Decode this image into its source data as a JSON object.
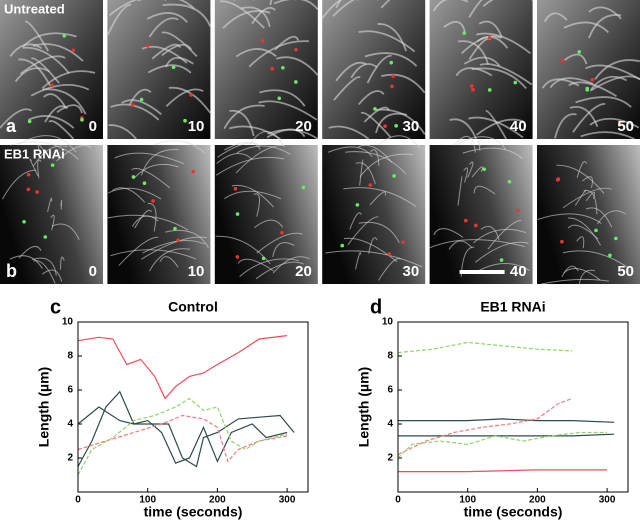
{
  "figure": {
    "rows": [
      {
        "label": "Untreated",
        "letter": "a",
        "times": [
          0,
          10,
          20,
          30,
          40,
          50
        ]
      },
      {
        "label": "EB1 RNAi",
        "letter": "b",
        "times": [
          0,
          10,
          20,
          30,
          40,
          50
        ]
      }
    ]
  },
  "chart_data": [
    {
      "type": "line",
      "panel": "c",
      "title": "Control",
      "xlabel": "time (seconds)",
      "ylabel": "Length (µm)",
      "xlim": [
        0,
        330
      ],
      "ylim": [
        0,
        10
      ],
      "xticks": [
        0,
        100,
        200,
        300
      ],
      "yticks": [
        2,
        4,
        6,
        8,
        10
      ],
      "series": [
        {
          "color": "#e8505a",
          "linestyle": "solid",
          "x": [
            0,
            30,
            50,
            70,
            90,
            110,
            125,
            140,
            160,
            180,
            200,
            230,
            260,
            300
          ],
          "values": [
            8.9,
            9.1,
            9.0,
            7.5,
            7.8,
            6.8,
            5.5,
            6.2,
            6.8,
            7.0,
            7.5,
            8.2,
            9.0,
            9.2
          ]
        },
        {
          "color": "#2f4a4a",
          "linestyle": "solid",
          "x": [
            0,
            20,
            40,
            60,
            80,
            100,
            120,
            140,
            160,
            180,
            200,
            220,
            250,
            270,
            300
          ],
          "values": [
            1.5,
            3.0,
            5.0,
            5.9,
            4.0,
            4.2,
            3.5,
            1.7,
            2.0,
            3.8,
            1.8,
            3.5,
            4.0,
            3.2,
            3.5
          ]
        },
        {
          "color": "#2f4a4a",
          "linestyle": "solid",
          "x": [
            0,
            30,
            60,
            80,
            100,
            130,
            150,
            170,
            180,
            200,
            230,
            260,
            290,
            310
          ],
          "values": [
            4.0,
            5.0,
            4.2,
            4.0,
            4.0,
            4.0,
            2.0,
            1.5,
            3.2,
            3.5,
            4.3,
            4.4,
            4.5,
            3.5
          ]
        },
        {
          "color": "#f07a80",
          "linestyle": "dashed",
          "x": [
            0,
            40,
            80,
            120,
            150,
            180,
            200,
            215,
            230,
            260,
            300
          ],
          "values": [
            2.5,
            3.0,
            3.5,
            4.0,
            4.5,
            4.3,
            3.8,
            1.8,
            2.5,
            3.0,
            3.3
          ]
        },
        {
          "color": "#8fd46a",
          "linestyle": "dashed",
          "x": [
            0,
            20,
            50,
            80,
            110,
            140,
            160,
            180,
            200,
            220,
            240,
            260,
            300
          ],
          "values": [
            1.0,
            2.5,
            3.2,
            4.2,
            4.5,
            5.0,
            5.5,
            4.8,
            5.0,
            3.0,
            2.5,
            3.0,
            3.4
          ]
        }
      ]
    },
    {
      "type": "line",
      "panel": "d",
      "title": "EB1 RNAi",
      "xlabel": "time (seconds)",
      "ylabel": "Length (µm)",
      "xlim": [
        0,
        330
      ],
      "ylim": [
        0,
        10
      ],
      "xticks": [
        0,
        100,
        200,
        300
      ],
      "yticks": [
        2,
        4,
        6,
        8,
        10
      ],
      "series": [
        {
          "color": "#8fd46a",
          "linestyle": "dashed",
          "x": [
            0,
            50,
            100,
            150,
            200,
            250
          ],
          "values": [
            8.2,
            8.4,
            8.8,
            8.6,
            8.4,
            8.3
          ]
        },
        {
          "color": "#2f4a4a",
          "linestyle": "solid",
          "x": [
            0,
            50,
            100,
            150,
            200,
            250,
            310
          ],
          "values": [
            4.2,
            4.2,
            4.2,
            4.3,
            4.2,
            4.2,
            4.1
          ]
        },
        {
          "color": "#2f4a4a",
          "linestyle": "solid",
          "x": [
            0,
            50,
            100,
            150,
            200,
            250,
            310
          ],
          "values": [
            3.3,
            3.3,
            3.3,
            3.3,
            3.3,
            3.3,
            3.4
          ]
        },
        {
          "color": "#f07a80",
          "linestyle": "dashed",
          "x": [
            0,
            40,
            80,
            120,
            160,
            200,
            230,
            250
          ],
          "values": [
            2.2,
            3.0,
            3.5,
            3.8,
            4.0,
            4.3,
            5.2,
            5.5
          ]
        },
        {
          "color": "#8fd46a",
          "linestyle": "dashed",
          "x": [
            0,
            20,
            60,
            100,
            140,
            180,
            220,
            260,
            300
          ],
          "values": [
            2.0,
            2.8,
            3.0,
            2.8,
            3.3,
            3.0,
            3.3,
            3.5,
            3.5
          ]
        },
        {
          "color": "#e8505a",
          "linestyle": "solid",
          "x": [
            0,
            100,
            200,
            300
          ],
          "values": [
            1.2,
            1.2,
            1.3,
            1.3
          ]
        }
      ]
    }
  ]
}
